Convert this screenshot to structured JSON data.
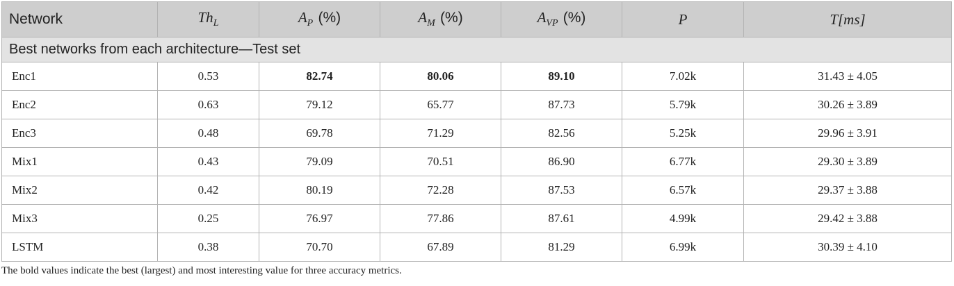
{
  "header": {
    "network": "Network",
    "th_l": {
      "main": "Th",
      "sub": "L"
    },
    "a_p": {
      "main": "A",
      "sub": "P",
      "unit": "(%)"
    },
    "a_m": {
      "main": "A",
      "sub": "M",
      "unit": "(%)"
    },
    "a_vp": {
      "main": "A",
      "sub": "VP",
      "unit": "(%)"
    },
    "p": "P",
    "t": "T[ms]"
  },
  "section_title": "Best networks from each architecture—Test set",
  "rows": [
    {
      "network": "Enc1",
      "th_l": "0.53",
      "a_p": "82.74",
      "a_m": "80.06",
      "a_vp": "89.10",
      "p": "7.02k",
      "t": "31.43 ± 4.05",
      "bold": true
    },
    {
      "network": "Enc2",
      "th_l": "0.63",
      "a_p": "79.12",
      "a_m": "65.77",
      "a_vp": "87.73",
      "p": "5.79k",
      "t": "30.26 ± 3.89"
    },
    {
      "network": "Enc3",
      "th_l": "0.48",
      "a_p": "69.78",
      "a_m": "71.29",
      "a_vp": "82.56",
      "p": "5.25k",
      "t": "29.96 ± 3.91"
    },
    {
      "network": "Mix1",
      "th_l": "0.43",
      "a_p": "79.09",
      "a_m": "70.51",
      "a_vp": "86.90",
      "p": "6.77k",
      "t": "29.30 ± 3.89"
    },
    {
      "network": "Mix2",
      "th_l": "0.42",
      "a_p": "80.19",
      "a_m": "72.28",
      "a_vp": "87.53",
      "p": "6.57k",
      "t": "29.37 ± 3.88"
    },
    {
      "network": "Mix3",
      "th_l": "0.25",
      "a_p": "76.97",
      "a_m": "77.86",
      "a_vp": "87.61",
      "p": "4.99k",
      "t": "29.42 ± 3.88"
    },
    {
      "network": "LSTM",
      "th_l": "0.38",
      "a_p": "70.70",
      "a_m": "67.89",
      "a_vp": "81.29",
      "p": "6.99k",
      "t": "30.39 ± 4.10"
    }
  ],
  "caption": "The bold values indicate the best (largest) and most interesting value for three accuracy metrics."
}
